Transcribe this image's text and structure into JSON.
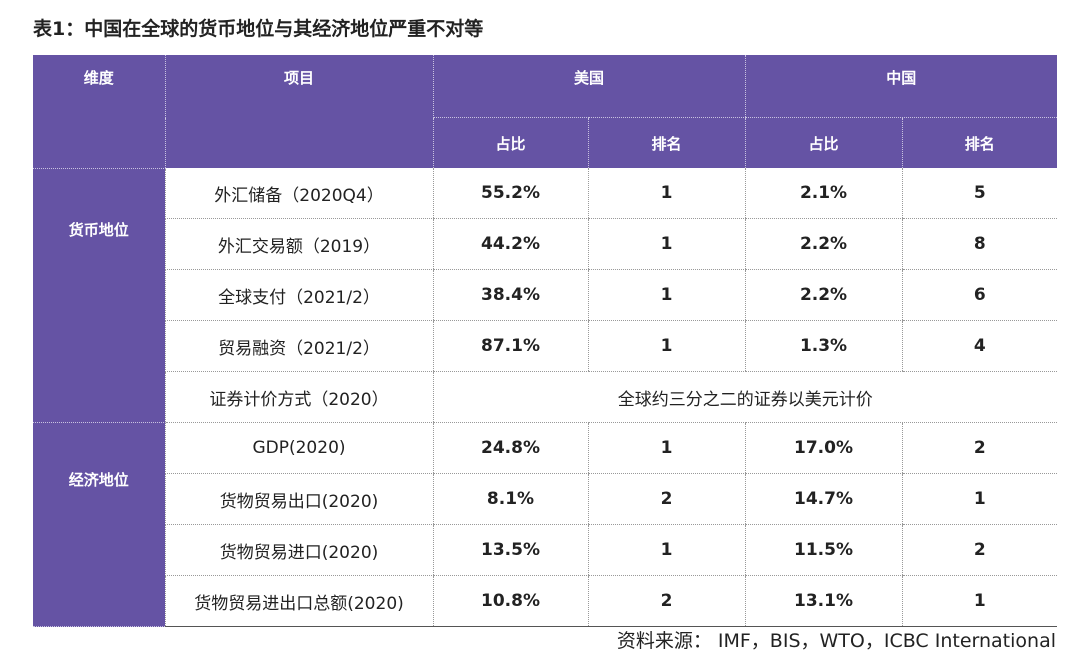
{
  "title": "表1：中国在全球的货币地位与其经济地位严重不对等",
  "header": {
    "dimension": "维度",
    "item": "项目",
    "us": "美国",
    "cn": "中国",
    "share": "占比",
    "rank": "排名"
  },
  "colors": {
    "header_bg": "#6553a4",
    "header_text": "#ffffff"
  },
  "groups": [
    {
      "label": "货币地位",
      "rows": [
        {
          "item": "外汇储备（2020Q4）",
          "us_share": "55.2%",
          "us_rank": "1",
          "cn_share": "2.1%",
          "cn_rank": "5"
        },
        {
          "item": "外汇交易额（2019）",
          "us_share": "44.2%",
          "us_rank": "1",
          "cn_share": "2.2%",
          "cn_rank": "8"
        },
        {
          "item": "全球支付（2021/2）",
          "us_share": "38.4%",
          "us_rank": "1",
          "cn_share": "2.2%",
          "cn_rank": "6"
        },
        {
          "item": "贸易融资（2021/2）",
          "us_share": "87.1%",
          "us_rank": "1",
          "cn_share": "1.3%",
          "cn_rank": "4"
        }
      ],
      "merged_row": {
        "item": "证券计价方式（2020）",
        "text": "全球约三分之二的证券以美元计价"
      }
    },
    {
      "label": "经济地位",
      "rows": [
        {
          "item": "GDP(2020)",
          "us_share": "24.8%",
          "us_rank": "1",
          "cn_share": "17.0%",
          "cn_rank": "2"
        },
        {
          "item": "货物贸易出口(2020)",
          "us_share": "8.1%",
          "us_rank": "2",
          "cn_share": "14.7%",
          "cn_rank": "1"
        },
        {
          "item": "货物贸易进口(2020)",
          "us_share": "13.5%",
          "us_rank": "1",
          "cn_share": "11.5%",
          "cn_rank": "2"
        },
        {
          "item": "货物贸易进出口总额(2020)",
          "us_share": "10.8%",
          "us_rank": "2",
          "cn_share": "13.1%",
          "cn_rank": "1"
        }
      ]
    }
  ],
  "source": "资料来源： IMF，BIS，WTO，ICBC International"
}
